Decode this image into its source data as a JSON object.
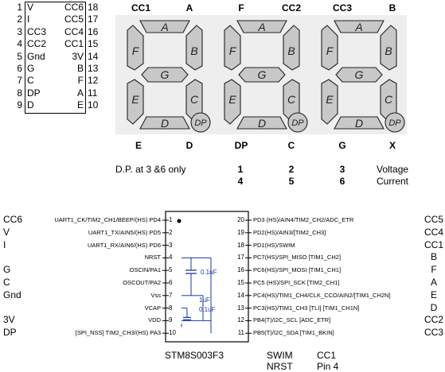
{
  "pinout": {
    "rows": [
      {
        "ln": "1",
        "lt": "V",
        "rt": "CC6",
        "rn": "18"
      },
      {
        "ln": "2",
        "lt": "I",
        "rt": "CC5",
        "rn": "17"
      },
      {
        "ln": "3",
        "lt": "CC3",
        "rt": "CC4",
        "rn": "16"
      },
      {
        "ln": "4",
        "lt": "CC2",
        "rt": "CC1",
        "rn": "15"
      },
      {
        "ln": "5",
        "lt": "Gnd",
        "rt": "3V",
        "rn": "14"
      },
      {
        "ln": "6",
        "lt": "G",
        "rt": "B",
        "rn": "13"
      },
      {
        "ln": "7",
        "lt": "C",
        "rt": "F",
        "rn": "12"
      },
      {
        "ln": "8",
        "lt": "DP",
        "rt": "A",
        "rn": "11"
      },
      {
        "ln": "9",
        "lt": "D",
        "rt": "E",
        "rn": "10"
      }
    ]
  },
  "display": {
    "top_labels": [
      "CC1",
      "A",
      "F",
      "CC2",
      "CC3",
      "B"
    ],
    "bottom_labels": [
      "E",
      "D",
      "DP",
      "C",
      "G",
      "X"
    ],
    "segment_letters": [
      "A",
      "B",
      "C",
      "D",
      "E",
      "F",
      "G"
    ],
    "dp_label": "DP",
    "segment_color": "#c8c8c8",
    "panel_color": "#eeeeee"
  },
  "digit_map": {
    "dp_note": "D.P. at 3 &6 only",
    "row1": [
      "1",
      "2",
      "3"
    ],
    "row2": [
      "4",
      "5",
      "6"
    ],
    "row1_label": "Voltage",
    "row2_label": "Current"
  },
  "chip": {
    "name": "STM8S003F3",
    "left_pins": [
      {
        "num": "1",
        "label": "UART1_CK/TIM2_CH1/BEEP/(HS) PD4"
      },
      {
        "num": "2",
        "label": "UART1_TX/AIN5/(HS) PD5"
      },
      {
        "num": "3",
        "label": "UART1_RX/AIN6/(HS) PD6"
      },
      {
        "num": "4",
        "label": "NRST"
      },
      {
        "num": "5",
        "label": "OSCIN/PA1"
      },
      {
        "num": "6",
        "label": "OSCOUT/PA2"
      },
      {
        "num": "7",
        "label": "Vss"
      },
      {
        "num": "8",
        "label": "VCAP"
      },
      {
        "num": "9",
        "label": "VDD"
      },
      {
        "num": "10",
        "label": "[SPI_NSS] TIM2_CH3/(HS) PA3"
      }
    ],
    "right_pins": [
      {
        "num": "20",
        "label": "PD3 (HS)/AIN4/TIM2_CH2/ADC_ETR"
      },
      {
        "num": "19",
        "label": "PD2(HS)/AIN3/[TIM2_CH3]"
      },
      {
        "num": "18",
        "label": "PD1(HS)/SWIM"
      },
      {
        "num": "17",
        "label": "PC7(HS)/SPI_MISO [TIM1_CH2]"
      },
      {
        "num": "16",
        "label": "PC6(HS)/SPI_MOSI [TIM1_CH1]"
      },
      {
        "num": "15",
        "label": "PC5 (HS)/SPI_SCK [TIM2_CH1]"
      },
      {
        "num": "14",
        "label": "PC4(HS)/TIM1_CH4/CLK_CCO/AIN2/[TIM1_CH2N]"
      },
      {
        "num": "13",
        "label": "PC3(HS)/TIM1_CH3 [TLI] [TIM1_CH1N]"
      },
      {
        "num": "12",
        "label": "PB4(T)/I2C_SCL [ADC_ETR]"
      },
      {
        "num": "11",
        "label": "PB5(T)/I2C_SDA [TIM1_BKIN]"
      }
    ],
    "left_conn": [
      "CC6",
      "V",
      "I",
      "",
      "G",
      "C",
      "Gnd",
      "",
      "3V",
      "DP"
    ],
    "right_conn": [
      "CC5",
      "CC4",
      "CC1",
      "B",
      "F",
      "A",
      "E",
      "D",
      "CC2",
      "CC3"
    ],
    "caps": {
      "c1": "0.1uF",
      "c2": "1uF",
      "c3": "0.1uF"
    },
    "wire_color": "#1a3aa8"
  },
  "notes": {
    "swim": "SWIM",
    "nrst": "NRST",
    "cc1": "CC1",
    "pin4": "Pin 4"
  }
}
